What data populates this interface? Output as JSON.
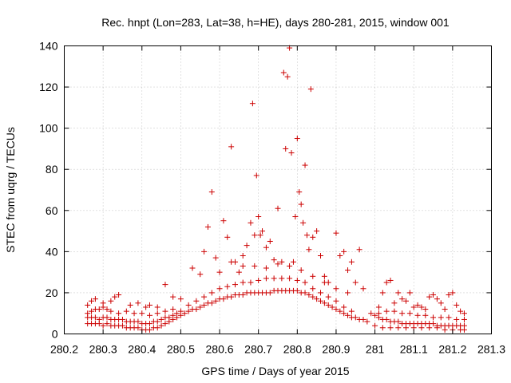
{
  "chart_data": {
    "type": "scatter",
    "title": "Rec. hnpt (Lon=283, Lat=38, h=HE), days 280-281, 2015, window 001",
    "xlabel": "GPS time / Days of year 2015",
    "ylabel": "STEC from uqrg / TECUs",
    "xlim": [
      280.2,
      281.3
    ],
    "ylim": [
      0,
      140
    ],
    "x_ticks": [
      "280.2",
      "280.3",
      "280.4",
      "280.5",
      "280.6",
      "280.7",
      "280.8",
      "280.9",
      "281",
      "281.1",
      "281.2",
      "281.3"
    ],
    "y_ticks": [
      "0",
      "20",
      "40",
      "60",
      "80",
      "100",
      "120",
      "140"
    ],
    "grid": true,
    "marker": "+",
    "color": "#cc0000",
    "series": [
      {
        "points": [
          [
            280.26,
            14
          ],
          [
            280.27,
            16
          ],
          [
            280.28,
            17
          ],
          [
            280.3,
            15
          ],
          [
            280.32,
            16
          ],
          [
            280.33,
            18
          ],
          [
            280.34,
            19
          ],
          [
            280.37,
            14
          ],
          [
            280.39,
            15
          ],
          [
            280.41,
            13
          ],
          [
            280.42,
            14
          ],
          [
            280.44,
            13
          ],
          [
            280.46,
            24
          ],
          [
            280.48,
            18
          ],
          [
            280.5,
            17
          ],
          [
            280.26,
            10
          ],
          [
            280.27,
            11
          ],
          [
            280.28,
            12
          ],
          [
            280.29,
            12
          ],
          [
            280.3,
            13
          ],
          [
            280.31,
            12
          ],
          [
            280.32,
            11
          ],
          [
            280.34,
            10
          ],
          [
            280.36,
            11
          ],
          [
            280.38,
            10
          ],
          [
            280.4,
            10
          ],
          [
            280.42,
            9
          ],
          [
            280.44,
            10
          ],
          [
            280.46,
            11
          ],
          [
            280.48,
            12
          ],
          [
            280.26,
            8
          ],
          [
            280.27,
            8
          ],
          [
            280.28,
            8
          ],
          [
            280.29,
            7
          ],
          [
            280.3,
            8
          ],
          [
            280.31,
            8
          ],
          [
            280.32,
            7
          ],
          [
            280.33,
            7
          ],
          [
            280.34,
            7
          ],
          [
            280.35,
            7
          ],
          [
            280.36,
            6
          ],
          [
            280.37,
            6
          ],
          [
            280.38,
            6
          ],
          [
            280.39,
            6
          ],
          [
            280.4,
            5
          ],
          [
            280.41,
            5
          ],
          [
            280.42,
            5
          ],
          [
            280.43,
            6
          ],
          [
            280.44,
            6
          ],
          [
            280.45,
            7
          ],
          [
            280.46,
            8
          ],
          [
            280.47,
            8
          ],
          [
            280.48,
            9
          ],
          [
            280.49,
            10
          ],
          [
            280.5,
            11
          ],
          [
            280.26,
            5
          ],
          [
            280.27,
            5
          ],
          [
            280.28,
            5
          ],
          [
            280.29,
            5
          ],
          [
            280.3,
            4
          ],
          [
            280.31,
            5
          ],
          [
            280.32,
            4
          ],
          [
            280.33,
            4
          ],
          [
            280.34,
            4
          ],
          [
            280.35,
            4
          ],
          [
            280.36,
            3
          ],
          [
            280.37,
            3
          ],
          [
            280.38,
            3
          ],
          [
            280.39,
            3
          ],
          [
            280.4,
            2
          ],
          [
            280.41,
            2
          ],
          [
            280.42,
            2
          ],
          [
            280.43,
            3
          ],
          [
            280.44,
            3
          ],
          [
            280.45,
            4
          ],
          [
            280.46,
            5
          ],
          [
            280.47,
            6
          ],
          [
            280.48,
            7
          ],
          [
            280.49,
            8
          ],
          [
            280.5,
            9
          ],
          [
            280.51,
            10
          ],
          [
            280.52,
            11
          ],
          [
            280.53,
            12
          ],
          [
            280.54,
            12
          ],
          [
            280.55,
            13
          ],
          [
            280.56,
            14
          ],
          [
            280.57,
            15
          ],
          [
            280.58,
            15
          ],
          [
            280.59,
            16
          ],
          [
            280.6,
            17
          ],
          [
            280.61,
            17
          ],
          [
            280.62,
            18
          ],
          [
            280.63,
            18
          ],
          [
            280.64,
            19
          ],
          [
            280.65,
            19
          ],
          [
            280.66,
            19
          ],
          [
            280.67,
            20
          ],
          [
            280.68,
            20
          ],
          [
            280.69,
            20
          ],
          [
            280.7,
            20
          ],
          [
            280.71,
            20
          ],
          [
            280.72,
            20
          ],
          [
            280.73,
            20
          ],
          [
            280.74,
            21
          ],
          [
            280.75,
            21
          ],
          [
            280.76,
            21
          ],
          [
            280.77,
            21
          ],
          [
            280.78,
            21
          ],
          [
            280.79,
            21
          ],
          [
            280.8,
            21
          ],
          [
            280.81,
            20
          ],
          [
            280.82,
            20
          ],
          [
            280.83,
            19
          ],
          [
            280.84,
            18
          ],
          [
            280.85,
            17
          ],
          [
            280.86,
            16
          ],
          [
            280.87,
            15
          ],
          [
            280.88,
            14
          ],
          [
            280.89,
            13
          ],
          [
            280.9,
            12
          ],
          [
            280.91,
            11
          ],
          [
            280.92,
            10
          ],
          [
            280.93,
            9
          ],
          [
            280.94,
            8
          ],
          [
            280.95,
            8
          ],
          [
            280.96,
            7
          ],
          [
            280.97,
            7
          ],
          [
            280.98,
            6
          ],
          [
            280.52,
            14
          ],
          [
            280.54,
            16
          ],
          [
            280.56,
            18
          ],
          [
            280.58,
            20
          ],
          [
            280.6,
            22
          ],
          [
            280.62,
            23
          ],
          [
            280.64,
            24
          ],
          [
            280.66,
            25
          ],
          [
            280.68,
            25
          ],
          [
            280.7,
            26
          ],
          [
            280.72,
            27
          ],
          [
            280.74,
            27
          ],
          [
            280.76,
            27
          ],
          [
            280.78,
            27
          ],
          [
            280.8,
            26
          ],
          [
            280.82,
            25
          ],
          [
            280.84,
            22
          ],
          [
            280.86,
            20
          ],
          [
            280.88,
            18
          ],
          [
            280.9,
            16
          ],
          [
            280.92,
            13
          ],
          [
            280.94,
            11
          ],
          [
            280.53,
            32
          ],
          [
            280.55,
            29
          ],
          [
            280.56,
            40
          ],
          [
            280.57,
            52
          ],
          [
            280.58,
            69
          ],
          [
            280.59,
            37
          ],
          [
            280.61,
            55
          ],
          [
            280.62,
            47
          ],
          [
            280.63,
            91
          ],
          [
            280.64,
            35
          ],
          [
            280.65,
            30
          ],
          [
            280.66,
            33
          ],
          [
            280.67,
            43
          ],
          [
            280.68,
            54
          ],
          [
            280.685,
            112
          ],
          [
            280.69,
            48
          ],
          [
            280.695,
            77
          ],
          [
            280.7,
            57
          ],
          [
            280.705,
            48
          ],
          [
            280.71,
            50
          ],
          [
            280.72,
            42
          ],
          [
            280.73,
            45
          ],
          [
            280.74,
            36
          ],
          [
            280.75,
            61
          ],
          [
            280.76,
            35
          ],
          [
            280.765,
            127
          ],
          [
            280.77,
            90
          ],
          [
            280.775,
            125
          ],
          [
            280.78,
            139
          ],
          [
            280.785,
            88
          ],
          [
            280.79,
            35
          ],
          [
            280.795,
            57
          ],
          [
            280.8,
            95
          ],
          [
            280.805,
            69
          ],
          [
            280.81,
            63
          ],
          [
            280.815,
            54
          ],
          [
            280.82,
            82
          ],
          [
            280.825,
            48
          ],
          [
            280.83,
            41
          ],
          [
            280.835,
            119
          ],
          [
            280.84,
            47
          ],
          [
            280.85,
            50
          ],
          [
            280.86,
            38
          ],
          [
            280.87,
            28
          ],
          [
            280.88,
            25
          ],
          [
            280.9,
            49
          ],
          [
            280.91,
            38
          ],
          [
            280.92,
            40
          ],
          [
            280.93,
            31
          ],
          [
            280.94,
            35
          ],
          [
            280.95,
            25
          ],
          [
            280.96,
            41
          ],
          [
            280.97,
            22
          ],
          [
            280.6,
            30
          ],
          [
            280.63,
            35
          ],
          [
            280.66,
            38
          ],
          [
            280.69,
            33
          ],
          [
            280.72,
            32
          ],
          [
            280.75,
            34
          ],
          [
            280.78,
            33
          ],
          [
            280.81,
            31
          ],
          [
            280.84,
            28
          ],
          [
            280.87,
            25
          ],
          [
            280.9,
            22
          ],
          [
            280.93,
            20
          ],
          [
            280.99,
            10
          ],
          [
            281.0,
            9
          ],
          [
            281.01,
            8
          ],
          [
            281.02,
            7
          ],
          [
            281.03,
            7
          ],
          [
            281.04,
            6
          ],
          [
            281.05,
            6
          ],
          [
            281.06,
            6
          ],
          [
            281.07,
            5
          ],
          [
            281.08,
            5
          ],
          [
            281.09,
            5
          ],
          [
            281.1,
            5
          ],
          [
            281.11,
            5
          ],
          [
            281.12,
            5
          ],
          [
            281.13,
            5
          ],
          [
            281.14,
            5
          ],
          [
            281.15,
            5
          ],
          [
            281.16,
            4
          ],
          [
            281.17,
            4
          ],
          [
            281.18,
            4
          ],
          [
            281.19,
            4
          ],
          [
            281.2,
            4
          ],
          [
            281.21,
            4
          ],
          [
            281.22,
            4
          ],
          [
            281.23,
            4
          ],
          [
            281.0,
            4
          ],
          [
            281.02,
            3
          ],
          [
            281.04,
            3
          ],
          [
            281.06,
            3
          ],
          [
            281.08,
            3
          ],
          [
            281.1,
            3
          ],
          [
            281.12,
            3
          ],
          [
            281.14,
            3
          ],
          [
            281.16,
            3
          ],
          [
            281.18,
            2
          ],
          [
            281.2,
            2
          ],
          [
            281.22,
            2
          ],
          [
            281.23,
            2
          ],
          [
            281.01,
            13
          ],
          [
            281.02,
            20
          ],
          [
            281.03,
            25
          ],
          [
            281.04,
            26
          ],
          [
            281.05,
            15
          ],
          [
            281.06,
            20
          ],
          [
            281.07,
            17
          ],
          [
            281.08,
            16
          ],
          [
            281.09,
            20
          ],
          [
            281.1,
            13
          ],
          [
            281.11,
            14
          ],
          [
            281.12,
            13
          ],
          [
            281.13,
            12
          ],
          [
            281.14,
            18
          ],
          [
            281.15,
            19
          ],
          [
            281.16,
            17
          ],
          [
            281.17,
            15
          ],
          [
            281.18,
            12
          ],
          [
            281.19,
            19
          ],
          [
            281.2,
            20
          ],
          [
            281.21,
            14
          ],
          [
            281.22,
            11
          ],
          [
            281.23,
            10
          ],
          [
            281.01,
            10
          ],
          [
            281.03,
            11
          ],
          [
            281.05,
            11
          ],
          [
            281.07,
            10
          ],
          [
            281.09,
            10
          ],
          [
            281.11,
            9
          ],
          [
            281.13,
            9
          ],
          [
            281.15,
            8
          ],
          [
            281.17,
            8
          ],
          [
            281.19,
            8
          ],
          [
            281.21,
            7
          ],
          [
            281.23,
            7
          ]
        ]
      }
    ]
  }
}
